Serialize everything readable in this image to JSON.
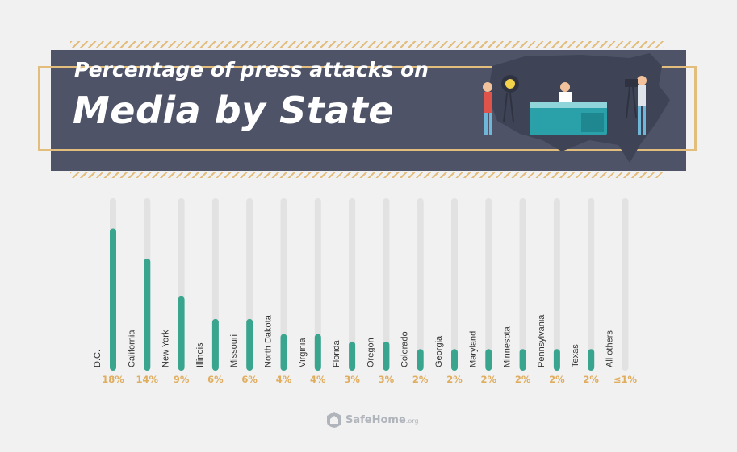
{
  "header": {
    "title_line1": "Percentage of press attacks on",
    "title_line2": "Media by State"
  },
  "chart_data": {
    "type": "bar",
    "title": "Percentage of press attacks on Media by State",
    "categories": [
      "D.C.",
      "California",
      "New York",
      "Illinois",
      "Missouri",
      "North Dakota",
      "Virginia",
      "Florida",
      "Oregon",
      "Colorado",
      "Georgia",
      "Maryland",
      "Minnesota",
      "Pennsylvania",
      "Texas",
      "All others"
    ],
    "values": [
      18,
      14,
      9,
      6,
      6,
      4,
      4,
      3,
      3,
      2,
      2,
      2,
      2,
      2,
      2,
      1
    ],
    "value_labels": [
      "18%",
      "14%",
      "9%",
      "6%",
      "6%",
      "4%",
      "4%",
      "3%",
      "3%",
      "2%",
      "2%",
      "2%",
      "2%",
      "2%",
      "2%",
      "≤1%"
    ],
    "xlabel": "",
    "ylabel": "",
    "ylim": [
      0,
      22
    ],
    "grid": false,
    "colors": {
      "bar": "#3aa58e",
      "track": "#e2e2e2",
      "label": "#e0ad5d"
    }
  },
  "footer": {
    "logo_text": "SafeHome",
    "logo_suffix": ".org"
  }
}
